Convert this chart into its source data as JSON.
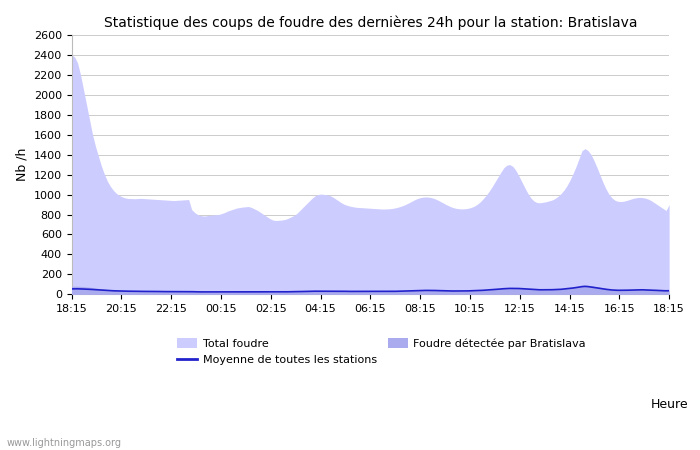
{
  "title": "Statistique des coups de foudre des dernières 24h pour la station: Bratislava",
  "ylabel": "Nb /h",
  "xlabel": "Heure",
  "watermark": "www.lightningmaps.org",
  "ylim": [
    0,
    2600
  ],
  "yticks": [
    0,
    200,
    400,
    600,
    800,
    1000,
    1200,
    1400,
    1600,
    1800,
    2000,
    2200,
    2400,
    2600
  ],
  "xtick_labels": [
    "18:15",
    "20:15",
    "22:15",
    "00:15",
    "02:15",
    "04:15",
    "06:15",
    "08:15",
    "10:15",
    "12:15",
    "14:15",
    "16:15",
    "18:15"
  ],
  "bg_color": "#ffffff",
  "grid_color": "#cccccc",
  "fill_total_color": "#ccccff",
  "fill_local_color": "#aaaaee",
  "line_mean_color": "#2222cc",
  "legend": {
    "total": "Total foudre",
    "mean": "Moyenne de toutes les stations",
    "local": "Foudre détectée par Bratislava"
  },
  "total_foudre": [
    2400,
    2380,
    2320,
    2200,
    2050,
    1900,
    1750,
    1600,
    1480,
    1380,
    1280,
    1200,
    1130,
    1080,
    1040,
    1010,
    990,
    975,
    965,
    960,
    960,
    958,
    960,
    962,
    960,
    958,
    956,
    954,
    952,
    950,
    948,
    946,
    944,
    942,
    940,
    942,
    944,
    946,
    948,
    950,
    850,
    820,
    800,
    790,
    785,
    788,
    792,
    795,
    798,
    800,
    810,
    820,
    835,
    845,
    855,
    865,
    870,
    875,
    878,
    880,
    870,
    855,
    840,
    820,
    800,
    780,
    760,
    745,
    740,
    742,
    745,
    750,
    760,
    775,
    790,
    810,
    840,
    870,
    900,
    930,
    960,
    985,
    1000,
    1005,
    1002,
    998,
    990,
    975,
    955,
    935,
    915,
    900,
    890,
    882,
    876,
    872,
    870,
    868,
    866,
    864,
    862,
    860,
    858,
    856,
    855,
    856,
    858,
    862,
    868,
    876,
    886,
    898,
    912,
    928,
    944,
    958,
    968,
    974,
    976,
    974,
    968,
    958,
    944,
    928,
    912,
    896,
    882,
    870,
    862,
    858,
    856,
    858,
    862,
    870,
    882,
    900,
    924,
    955,
    990,
    1030,
    1075,
    1125,
    1175,
    1225,
    1270,
    1295,
    1300,
    1280,
    1240,
    1185,
    1125,
    1065,
    1010,
    965,
    935,
    920,
    918,
    922,
    928,
    936,
    945,
    960,
    982,
    1010,
    1045,
    1090,
    1145,
    1210,
    1280,
    1360,
    1440,
    1460,
    1440,
    1400,
    1340,
    1270,
    1195,
    1120,
    1055,
    1002,
    965,
    942,
    932,
    930,
    934,
    942,
    952,
    962,
    968,
    972,
    970,
    965,
    955,
    940,
    920,
    900,
    880,
    860,
    840,
    900
  ],
  "local_foudre": [
    80,
    82,
    82,
    80,
    78,
    75,
    72,
    68,
    64,
    60,
    56,
    52,
    48,
    45,
    42,
    40,
    38,
    36,
    35,
    34,
    33,
    32,
    32,
    31,
    31,
    30,
    30,
    30,
    29,
    29,
    29,
    29,
    28,
    28,
    28,
    28,
    28,
    28,
    29,
    29,
    28,
    27,
    26,
    26,
    25,
    25,
    25,
    25,
    25,
    25,
    26,
    26,
    27,
    27,
    28,
    28,
    29,
    29,
    30,
    30,
    29,
    29,
    28,
    28,
    27,
    27,
    26,
    26,
    26,
    26,
    26,
    27,
    27,
    28,
    29,
    30,
    31,
    32,
    33,
    34,
    35,
    36,
    37,
    38,
    38,
    38,
    38,
    37,
    36,
    35,
    34,
    33,
    32,
    32,
    31,
    31,
    31,
    30,
    30,
    30,
    30,
    30,
    30,
    30,
    30,
    30,
    31,
    31,
    32,
    33,
    34,
    35,
    37,
    38,
    40,
    42,
    43,
    44,
    44,
    44,
    43,
    42,
    41,
    40,
    38,
    37,
    36,
    35,
    34,
    34,
    34,
    34,
    35,
    36,
    37,
    38,
    40,
    42,
    44,
    46,
    49,
    52,
    55,
    58,
    62,
    65,
    67,
    68,
    68,
    66,
    63,
    60,
    57,
    54,
    51,
    49,
    48,
    48,
    48,
    49,
    50,
    51,
    53,
    55,
    58,
    62,
    67,
    72,
    78,
    84,
    91,
    94,
    91,
    87,
    82,
    76,
    70,
    64,
    59,
    54,
    50,
    47,
    46,
    45,
    46,
    47,
    48,
    50,
    51,
    52,
    52,
    51,
    50,
    49,
    47,
    45,
    43,
    41,
    40,
    42
  ],
  "mean_line": [
    55,
    56,
    56,
    55,
    54,
    53,
    51,
    49,
    47,
    45,
    43,
    41,
    39,
    38,
    36,
    35,
    34,
    33,
    33,
    32,
    32,
    31,
    31,
    30,
    30,
    30,
    29,
    29,
    29,
    29,
    28,
    28,
    28,
    28,
    27,
    27,
    27,
    27,
    27,
    27,
    27,
    26,
    26,
    25,
    25,
    25,
    24,
    24,
    24,
    24,
    24,
    24,
    24,
    24,
    25,
    25,
    25,
    26,
    26,
    26,
    26,
    26,
    26,
    26,
    26,
    26,
    25,
    25,
    25,
    25,
    26,
    26,
    26,
    27,
    27,
    28,
    28,
    29,
    30,
    30,
    31,
    32,
    32,
    33,
    33,
    33,
    33,
    33,
    32,
    32,
    31,
    31,
    30,
    30,
    30,
    29,
    29,
    29,
    29,
    29,
    29,
    29,
    29,
    29,
    30,
    30,
    30,
    31,
    31,
    32,
    33,
    34,
    35,
    36,
    37,
    38,
    39,
    39,
    40,
    40,
    39,
    39,
    38,
    37,
    36,
    35,
    35,
    34,
    34,
    34,
    34,
    34,
    35,
    36,
    37,
    38,
    39,
    41,
    43,
    45,
    47,
    50,
    52,
    55,
    57,
    59,
    60,
    60,
    60,
    59,
    57,
    55,
    52,
    50,
    48,
    47,
    46,
    46,
    46,
    47,
    47,
    48,
    50,
    51,
    54,
    57,
    60,
    64,
    68,
    73,
    78,
    80,
    78,
    74,
    70,
    65,
    60,
    55,
    51,
    47,
    44,
    42,
    41,
    41,
    41,
    42,
    43,
    44,
    45,
    46,
    46,
    45,
    44,
    43,
    41,
    40,
    38,
    37,
    36,
    37
  ]
}
